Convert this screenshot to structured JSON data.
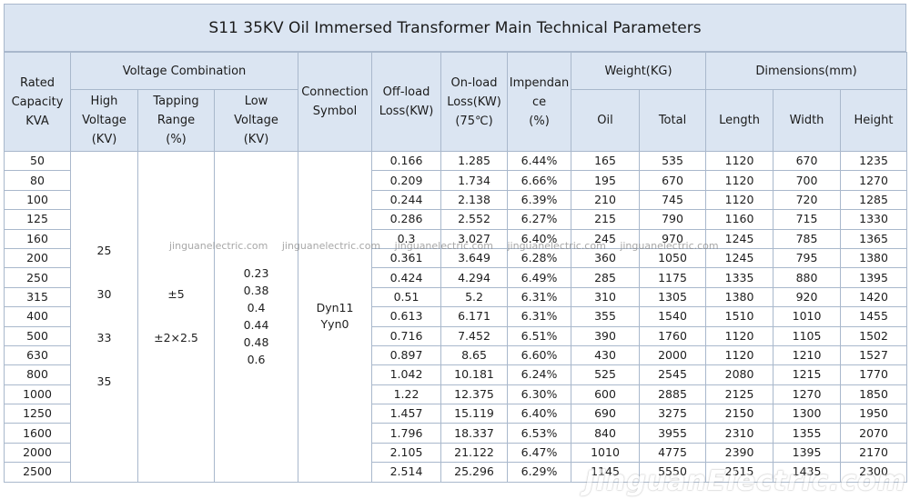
{
  "title": "S11 35KV Oil Immersed Transformer Main Technical Parameters",
  "header": {
    "rated_capacity": [
      "Rated",
      "Capacity",
      "KVA"
    ],
    "voltage_combination": "Voltage Combination",
    "high_voltage": [
      "High",
      "Voltage",
      "(KV)"
    ],
    "tapping_range": [
      "Tapping",
      "Range",
      "(%)"
    ],
    "low_voltage": [
      "Low",
      "Voltage",
      "(KV)"
    ],
    "connection_symbol": [
      "Connection",
      "Symbol"
    ],
    "offload_loss": [
      "Off-load",
      "Loss(KW)"
    ],
    "onload_loss": [
      "On-load",
      "Loss(KW)",
      "(75℃)"
    ],
    "impedance": [
      "Impendan",
      "ce",
      "(%)"
    ],
    "weight": "Weight(KG)",
    "oil": "Oil",
    "total": "Total",
    "dimensions": "Dimensions(mm)",
    "length": "Length",
    "width": "Width",
    "height": "Height"
  },
  "merged": {
    "high_voltage": [
      "25",
      "30",
      "33",
      "35"
    ],
    "tapping_range": [
      "±5",
      "±2×2.5"
    ],
    "low_voltage": [
      "0.23",
      "0.38",
      "0.4",
      "0.44",
      "0.48",
      "0.6"
    ],
    "connection_symbol": [
      "Dyn11",
      "Yyn0"
    ]
  },
  "rows": [
    {
      "capacity": "50",
      "offload": "0.166",
      "onload": "1.285",
      "impedance": "6.44%",
      "oil": "165",
      "total": "535",
      "length": "1120",
      "width": "670",
      "height": "1235"
    },
    {
      "capacity": "80",
      "offload": "0.209",
      "onload": "1.734",
      "impedance": "6.66%",
      "oil": "195",
      "total": "670",
      "length": "1120",
      "width": "700",
      "height": "1270"
    },
    {
      "capacity": "100",
      "offload": "0.244",
      "onload": "2.138",
      "impedance": "6.39%",
      "oil": "210",
      "total": "745",
      "length": "1120",
      "width": "720",
      "height": "1285"
    },
    {
      "capacity": "125",
      "offload": "0.286",
      "onload": "2.552",
      "impedance": "6.27%",
      "oil": "215",
      "total": "790",
      "length": "1160",
      "width": "715",
      "height": "1330"
    },
    {
      "capacity": "160",
      "offload": "0.3",
      "onload": "3.027",
      "impedance": "6.40%",
      "oil": "245",
      "total": "970",
      "length": "1245",
      "width": "785",
      "height": "1365"
    },
    {
      "capacity": "200",
      "offload": "0.361",
      "onload": "3.649",
      "impedance": "6.28%",
      "oil": "360",
      "total": "1050",
      "length": "1245",
      "width": "795",
      "height": "1380"
    },
    {
      "capacity": "250",
      "offload": "0.424",
      "onload": "4.294",
      "impedance": "6.49%",
      "oil": "285",
      "total": "1175",
      "length": "1335",
      "width": "880",
      "height": "1395"
    },
    {
      "capacity": "315",
      "offload": "0.51",
      "onload": "5.2",
      "impedance": "6.31%",
      "oil": "310",
      "total": "1305",
      "length": "1380",
      "width": "920",
      "height": "1420"
    },
    {
      "capacity": "400",
      "offload": "0.613",
      "onload": "6.171",
      "impedance": "6.31%",
      "oil": "355",
      "total": "1540",
      "length": "1510",
      "width": "1010",
      "height": "1455"
    },
    {
      "capacity": "500",
      "offload": "0.716",
      "onload": "7.452",
      "impedance": "6.51%",
      "oil": "390",
      "total": "1760",
      "length": "1120",
      "width": "1105",
      "height": "1502"
    },
    {
      "capacity": "630",
      "offload": "0.897",
      "onload": "8.65",
      "impedance": "6.60%",
      "oil": "430",
      "total": "2000",
      "length": "1120",
      "width": "1210",
      "height": "1527"
    },
    {
      "capacity": "800",
      "offload": "1.042",
      "onload": "10.181",
      "impedance": "6.24%",
      "oil": "525",
      "total": "2545",
      "length": "2080",
      "width": "1215",
      "height": "1770"
    },
    {
      "capacity": "1000",
      "offload": "1.22",
      "onload": "12.375",
      "impedance": "6.30%",
      "oil": "600",
      "total": "2885",
      "length": "2125",
      "width": "1270",
      "height": "1850"
    },
    {
      "capacity": "1250",
      "offload": "1.457",
      "onload": "15.119",
      "impedance": "6.40%",
      "oil": "690",
      "total": "3275",
      "length": "2150",
      "width": "1300",
      "height": "1950"
    },
    {
      "capacity": "1600",
      "offload": "1.796",
      "onload": "18.337",
      "impedance": "6.53%",
      "oil": "840",
      "total": "3955",
      "length": "2310",
      "width": "1355",
      "height": "2070"
    },
    {
      "capacity": "2000",
      "offload": "2.105",
      "onload": "21.122",
      "impedance": "6.47%",
      "oil": "1010",
      "total": "4775",
      "length": "2390",
      "width": "1395",
      "height": "2170"
    },
    {
      "capacity": "2500",
      "offload": "2.514",
      "onload": "25.296",
      "impedance": "6.29%",
      "oil": "1145",
      "total": "5550",
      "length": "2515",
      "width": "1435",
      "height": "2300"
    }
  ],
  "watermark_text": "jinguanelectric.com",
  "watermark_logo": "JinguanElectric.com",
  "colors": {
    "header_bg": "#dbe5f2",
    "border": "#a9b8cc",
    "text": "#1e1e1e"
  }
}
